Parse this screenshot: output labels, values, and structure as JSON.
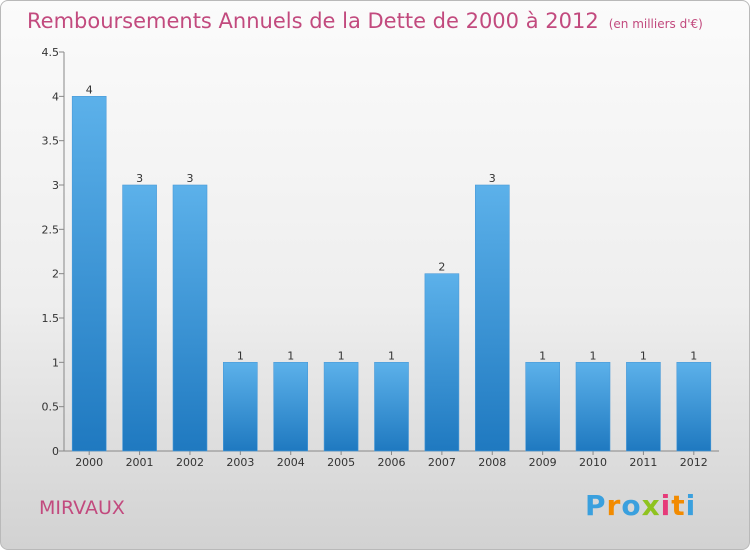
{
  "title": "Remboursements Annuels de la Dette de 2000 à 2012",
  "unit_note": "(en milliers d'€)",
  "commune": "MIRVAUX",
  "brand": {
    "letters": [
      "P",
      "r",
      "o",
      "x",
      "i",
      "t",
      "i"
    ],
    "colors": [
      "#3aa0de",
      "#f28b00",
      "#3aa0de",
      "#8fc31f",
      "#e63b7a",
      "#f28b00",
      "#3aa0de"
    ]
  },
  "colors": {
    "bar_top": "#5cb1ea",
    "bar_bottom": "#1f79c0",
    "title": "#c24a7e"
  },
  "chart_data": {
    "type": "bar",
    "categories": [
      "2000",
      "2001",
      "2002",
      "2003",
      "2004",
      "2005",
      "2006",
      "2007",
      "2008",
      "2009",
      "2010",
      "2011",
      "2012"
    ],
    "values": [
      4,
      3,
      3,
      1,
      1,
      1,
      1,
      2,
      3,
      1,
      1,
      1,
      1
    ],
    "data_labels": [
      "4",
      "3",
      "3",
      "1",
      "1",
      "1",
      "1",
      "2",
      "3",
      "1",
      "1",
      "1",
      "1"
    ],
    "ylim": [
      0,
      4.5
    ],
    "yticks": [
      0,
      0.5,
      1,
      1.5,
      2,
      2.5,
      3,
      3.5,
      4,
      4.5
    ],
    "ytick_labels": [
      "0",
      "0.5",
      "1",
      "1.5",
      "2",
      "2.5",
      "3",
      "3.5",
      "4",
      "4.5"
    ],
    "grid": false,
    "xlabel": "",
    "ylabel": ""
  }
}
